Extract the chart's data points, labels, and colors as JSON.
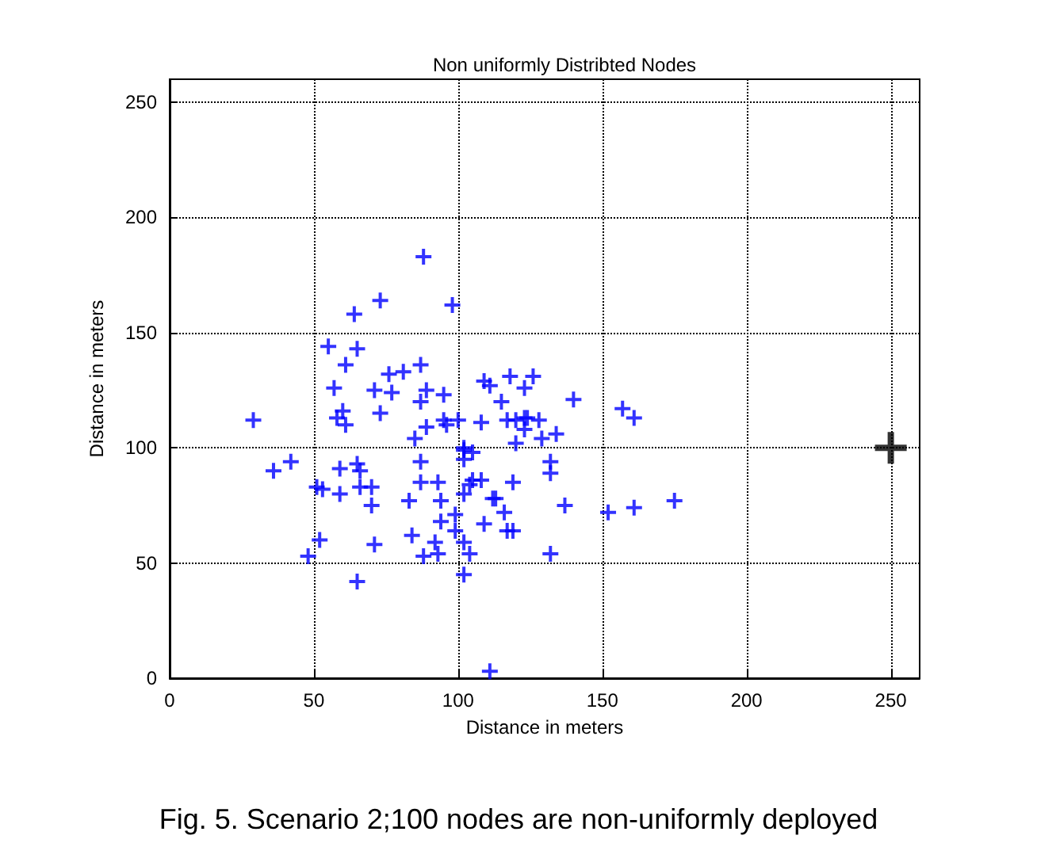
{
  "chart_data": {
    "type": "scatter",
    "title": "Non uniformly Distribted Nodes",
    "xlabel": "Distance in meters",
    "ylabel": "Distance in meters",
    "xlim": [
      0,
      260
    ],
    "ylim": [
      0,
      260
    ],
    "xticks": [
      0,
      50,
      100,
      150,
      200,
      250
    ],
    "yticks": [
      0,
      50,
      100,
      150,
      200,
      250
    ],
    "grid": true,
    "marker": "cross",
    "annotations": [
      "Fig. 5. Scenario 2;100 nodes are non-uniformly deployed"
    ],
    "series": [
      {
        "color": "#0000ff",
        "x": [
          73,
          64,
          55,
          65,
          61,
          76,
          57,
          71,
          77,
          73,
          60,
          58,
          61,
          29,
          36,
          42,
          59,
          65,
          66,
          51,
          53,
          59,
          66,
          70,
          70,
          52,
          48,
          71,
          65,
          88,
          98,
          87,
          81,
          89,
          87,
          95,
          109,
          111,
          118,
          126,
          123,
          115,
          89,
          85,
          95,
          96,
          100,
          108,
          117,
          120,
          123,
          124,
          128,
          123,
          120,
          129,
          132,
          132,
          102,
          105,
          102,
          102,
          87,
          87,
          93,
          83,
          94,
          105,
          108,
          104,
          102,
          119,
          112,
          113,
          116,
          117,
          119,
          109,
          94,
          99,
          99,
          84,
          92,
          88,
          93,
          102,
          104,
          102,
          111,
          132,
          140,
          134,
          157,
          161,
          137,
          152,
          161,
          175
        ],
        "values": [
          164,
          158,
          144,
          143,
          136,
          132,
          126,
          125,
          124,
          115,
          116,
          113,
          110,
          112,
          90,
          94,
          91,
          93,
          90,
          83,
          82,
          80,
          83,
          83,
          75,
          60,
          53,
          58,
          42,
          183,
          162,
          136,
          133,
          125,
          120,
          123,
          129,
          127,
          131,
          131,
          126,
          120,
          109,
          104,
          112,
          110,
          112,
          111,
          112,
          112,
          113,
          113,
          112,
          108,
          102,
          104,
          94,
          89,
          100,
          98,
          99,
          95,
          94,
          85,
          85,
          77,
          77,
          86,
          86,
          84,
          80,
          85,
          78,
          78,
          72,
          64,
          64,
          67,
          68,
          71,
          64,
          62,
          59,
          53,
          54,
          59,
          54,
          45,
          3,
          54,
          121,
          106,
          117,
          113,
          75,
          72,
          74,
          77
        ]
      },
      {
        "color": "#000000",
        "x": [
          250
        ],
        "values": [
          100
        ]
      }
    ]
  }
}
